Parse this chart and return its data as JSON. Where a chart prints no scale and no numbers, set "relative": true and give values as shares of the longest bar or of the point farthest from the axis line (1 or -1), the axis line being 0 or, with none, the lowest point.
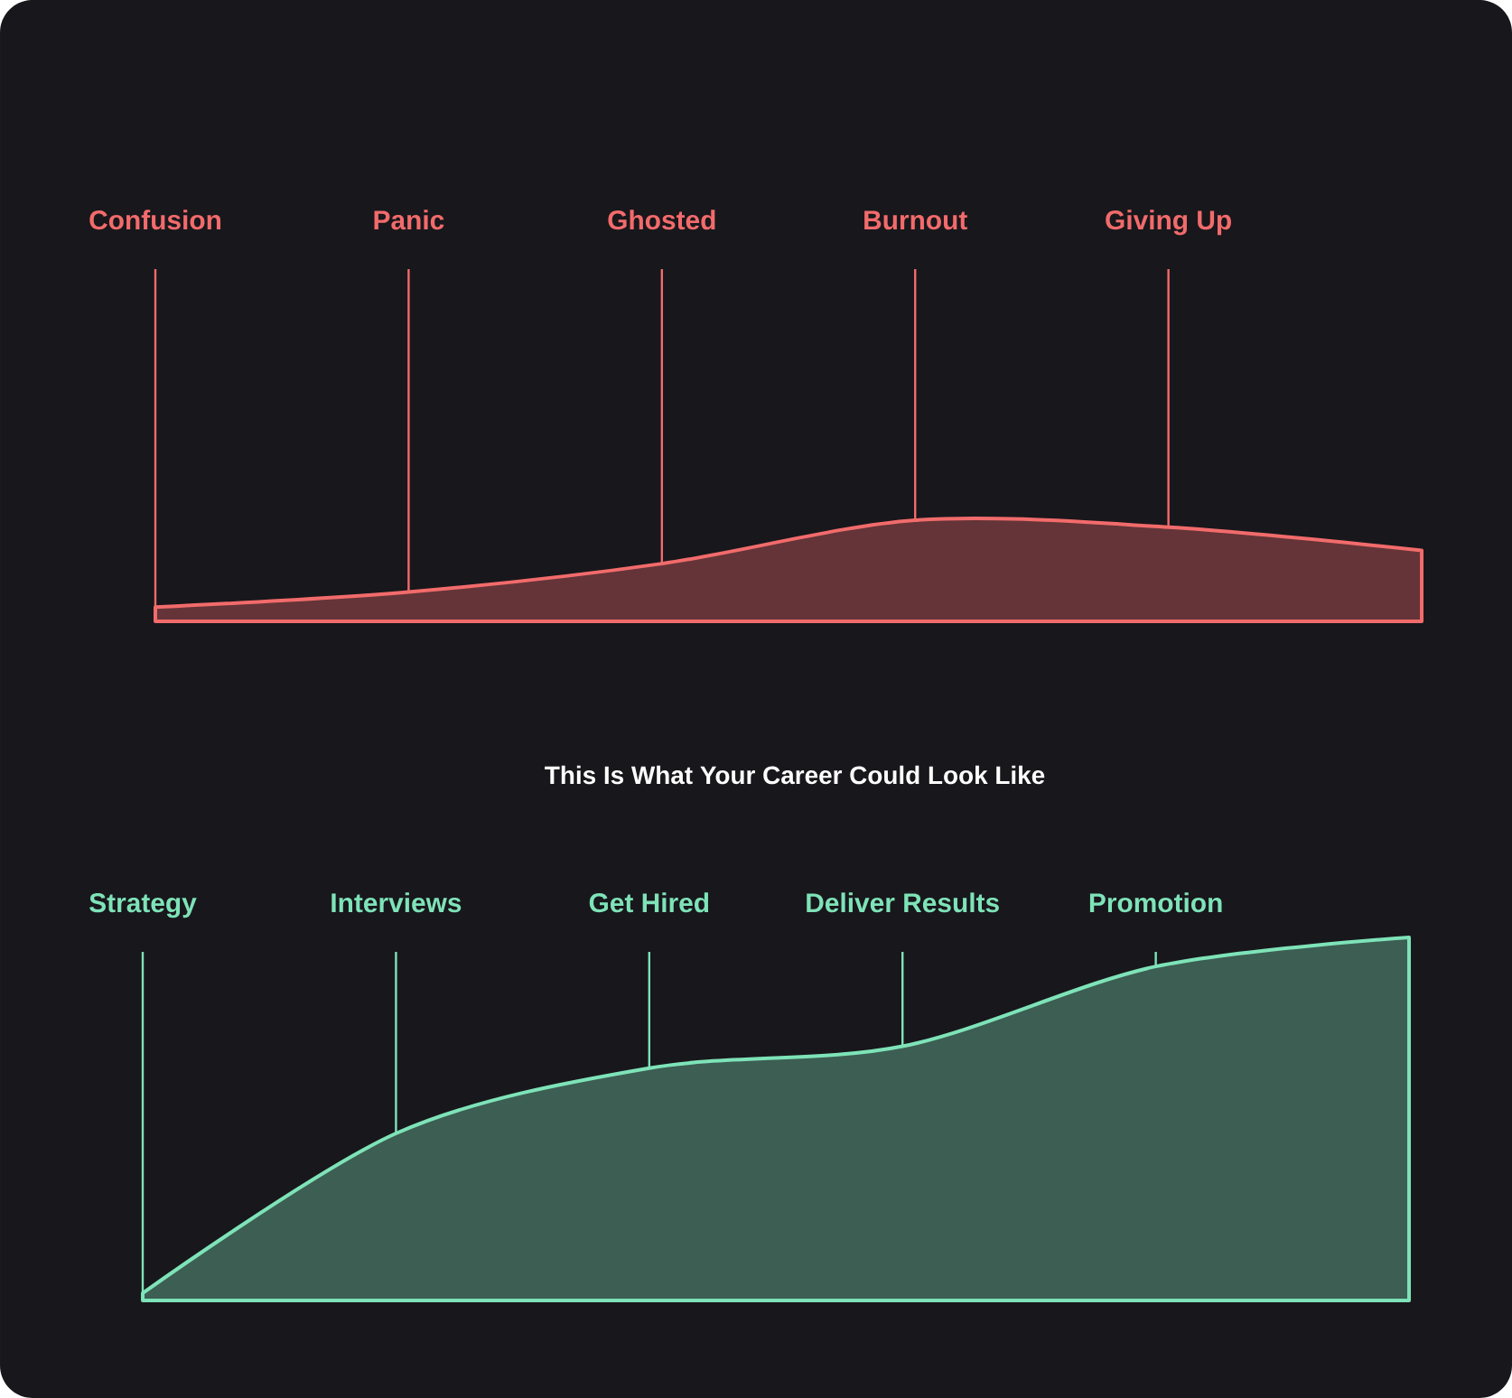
{
  "chart_data": [
    {
      "type": "area",
      "relative": true,
      "color": "#f26b6b",
      "categories": [
        "Confusion",
        "Panic",
        "Ghosted",
        "Burnout",
        "Giving Up",
        null
      ],
      "values": [
        0.14,
        0.29,
        0.57,
        1,
        0.93,
        0.7
      ]
    },
    {
      "type": "area",
      "relative": true,
      "color": "#7ee3b8",
      "title": "This Is What Your Career Could Look Like",
      "categories": [
        "Strategy",
        "Interviews",
        "Get Hired",
        "Deliver Results",
        "Promotion",
        null
      ],
      "values": [
        0.02,
        0.46,
        0.64,
        0.7,
        0.92,
        1
      ]
    }
  ]
}
